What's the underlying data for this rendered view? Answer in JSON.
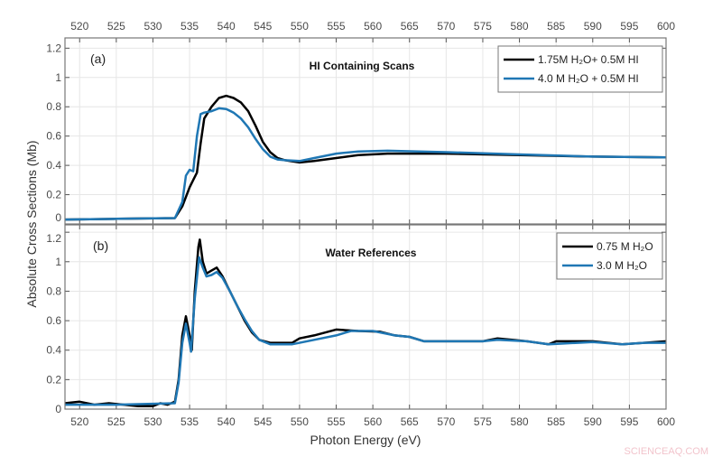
{
  "chart_data": {
    "type": "line",
    "xlabel": "Photon Energy (eV)",
    "ylabel": "Absolute Cross Sections (Mb)",
    "xlim": [
      518,
      600
    ],
    "xticks": [
      520,
      525,
      530,
      535,
      540,
      545,
      550,
      555,
      560,
      565,
      570,
      575,
      580,
      585,
      590,
      595,
      600
    ],
    "top_axis_ticks": true,
    "grid": true,
    "watermark": "SCIENCEAQ.COM",
    "panels": [
      {
        "panel_label": "(a)",
        "title": "HI Containing Scans",
        "ylim": [
          0,
          1.27
        ],
        "yticks": [
          0,
          0.2,
          0.4,
          0.6,
          0.8,
          1,
          1.2
        ],
        "legend_position": "top-right",
        "series": [
          {
            "name": "1.75M H₂O+ 0.5M HI",
            "color": "#000000",
            "points": [
              [
                518,
                0.03
              ],
              [
                525,
                0.035
              ],
              [
                533,
                0.04
              ],
              [
                534,
                0.12
              ],
              [
                535,
                0.25
              ],
              [
                535.5,
                0.3
              ],
              [
                536,
                0.35
              ],
              [
                536.5,
                0.55
              ],
              [
                537,
                0.72
              ],
              [
                538,
                0.8
              ],
              [
                539,
                0.86
              ],
              [
                540,
                0.875
              ],
              [
                541,
                0.86
              ],
              [
                542,
                0.83
              ],
              [
                543,
                0.77
              ],
              [
                544,
                0.67
              ],
              [
                545,
                0.56
              ],
              [
                546,
                0.49
              ],
              [
                547,
                0.45
              ],
              [
                548,
                0.435
              ],
              [
                550,
                0.42
              ],
              [
                552,
                0.43
              ],
              [
                555,
                0.45
              ],
              [
                558,
                0.47
              ],
              [
                562,
                0.48
              ],
              [
                570,
                0.48
              ],
              [
                580,
                0.47
              ],
              [
                590,
                0.46
              ],
              [
                600,
                0.455
              ]
            ]
          },
          {
            "name": "4.0 M H₂O + 0.5M HI",
            "color": "#1f77b4",
            "points": [
              [
                518,
                0.03
              ],
              [
                525,
                0.035
              ],
              [
                533,
                0.04
              ],
              [
                534,
                0.15
              ],
              [
                534.5,
                0.33
              ],
              [
                535,
                0.37
              ],
              [
                535.5,
                0.36
              ],
              [
                536,
                0.6
              ],
              [
                536.5,
                0.75
              ],
              [
                537,
                0.76
              ],
              [
                538,
                0.77
              ],
              [
                539,
                0.79
              ],
              [
                540,
                0.785
              ],
              [
                541,
                0.76
              ],
              [
                542,
                0.72
              ],
              [
                543,
                0.66
              ],
              [
                544,
                0.58
              ],
              [
                545,
                0.51
              ],
              [
                546,
                0.46
              ],
              [
                547,
                0.44
              ],
              [
                548,
                0.435
              ],
              [
                550,
                0.43
              ],
              [
                552,
                0.45
              ],
              [
                555,
                0.48
              ],
              [
                558,
                0.495
              ],
              [
                562,
                0.5
              ],
              [
                570,
                0.49
              ],
              [
                580,
                0.475
              ],
              [
                590,
                0.46
              ],
              [
                600,
                0.455
              ]
            ]
          }
        ]
      },
      {
        "panel_label": "(b)",
        "title": "Water References",
        "ylim": [
          0,
          1.25
        ],
        "yticks": [
          0,
          0.2,
          0.4,
          0.6,
          0.8,
          1,
          1.2
        ],
        "legend_position": "top-right",
        "series": [
          {
            "name": "0.75 M H₂O",
            "color": "#000000",
            "points": [
              [
                518,
                0.04
              ],
              [
                520,
                0.05
              ],
              [
                522,
                0.03
              ],
              [
                524,
                0.04
              ],
              [
                526,
                0.03
              ],
              [
                528,
                0.02
              ],
              [
                530,
                0.02
              ],
              [
                531,
                0.04
              ],
              [
                532,
                0.03
              ],
              [
                533,
                0.05
              ],
              [
                533.5,
                0.2
              ],
              [
                534,
                0.5
              ],
              [
                534.5,
                0.63
              ],
              [
                535,
                0.5
              ],
              [
                535.3,
                0.4
              ],
              [
                535.7,
                0.8
              ],
              [
                536.2,
                1.1
              ],
              [
                536.4,
                1.15
              ],
              [
                536.8,
                1.0
              ],
              [
                537.3,
                0.92
              ],
              [
                538,
                0.94
              ],
              [
                538.7,
                0.96
              ],
              [
                539.5,
                0.9
              ],
              [
                540.5,
                0.8
              ],
              [
                541.5,
                0.7
              ],
              [
                542.5,
                0.6
              ],
              [
                543.5,
                0.52
              ],
              [
                544.5,
                0.47
              ],
              [
                546,
                0.45
              ],
              [
                548,
                0.45
              ],
              [
                549,
                0.45
              ],
              [
                550,
                0.48
              ],
              [
                552,
                0.5
              ],
              [
                555,
                0.54
              ],
              [
                558,
                0.53
              ],
              [
                561,
                0.525
              ],
              [
                563,
                0.5
              ],
              [
                565,
                0.49
              ],
              [
                567,
                0.46
              ],
              [
                570,
                0.46
              ],
              [
                575,
                0.46
              ],
              [
                577,
                0.48
              ],
              [
                579,
                0.47
              ],
              [
                581,
                0.46
              ],
              [
                584,
                0.44
              ],
              [
                585,
                0.46
              ],
              [
                590,
                0.46
              ],
              [
                594,
                0.44
              ],
              [
                597,
                0.45
              ],
              [
                600,
                0.46
              ]
            ]
          },
          {
            "name": "3.0 M H₂O",
            "color": "#1f77b4",
            "points": [
              [
                518,
                0.03
              ],
              [
                525,
                0.03
              ],
              [
                533,
                0.04
              ],
              [
                533.5,
                0.18
              ],
              [
                534,
                0.45
              ],
              [
                534.5,
                0.58
              ],
              [
                535,
                0.45
              ],
              [
                535.2,
                0.39
              ],
              [
                535.7,
                0.75
              ],
              [
                536.3,
                1.03
              ],
              [
                536.8,
                0.96
              ],
              [
                537.3,
                0.9
              ],
              [
                538,
                0.91
              ],
              [
                538.7,
                0.93
              ],
              [
                539.5,
                0.89
              ],
              [
                540.5,
                0.8
              ],
              [
                541.5,
                0.7
              ],
              [
                542.5,
                0.61
              ],
              [
                543.5,
                0.53
              ],
              [
                544.5,
                0.47
              ],
              [
                546,
                0.44
              ],
              [
                549,
                0.44
              ],
              [
                552,
                0.47
              ],
              [
                555,
                0.5
              ],
              [
                557,
                0.53
              ],
              [
                560,
                0.53
              ],
              [
                563,
                0.5
              ],
              [
                565,
                0.49
              ],
              [
                567,
                0.46
              ],
              [
                570,
                0.46
              ],
              [
                575,
                0.46
              ],
              [
                577,
                0.47
              ],
              [
                581,
                0.46
              ],
              [
                584,
                0.44
              ],
              [
                590,
                0.455
              ],
              [
                594,
                0.44
              ],
              [
                597,
                0.45
              ],
              [
                600,
                0.45
              ]
            ]
          }
        ]
      }
    ]
  }
}
